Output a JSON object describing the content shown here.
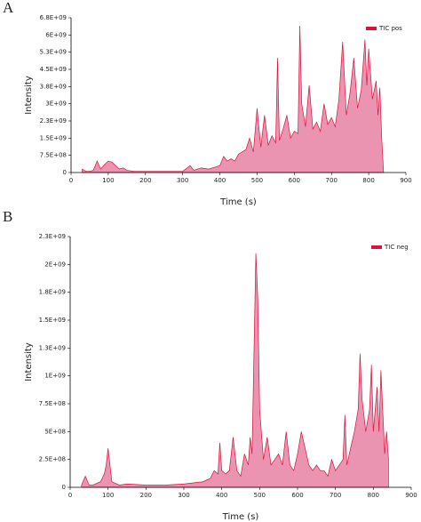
{
  "chart_data": [
    {
      "type": "area",
      "panel": "A",
      "xlabel": "Time (s)",
      "ylabel": "Intensity",
      "legend": "upper right",
      "xlim": [
        0,
        900
      ],
      "xticks": [
        0,
        100,
        200,
        300,
        400,
        500,
        600,
        700,
        800,
        900
      ],
      "ylim": [
        0,
        6750000000.0
      ],
      "yticks": [
        0,
        {
          "value": 750000000.0,
          "label": "7.5E+08"
        },
        {
          "value": 1500000000.0,
          "label": "1.5E+09"
        },
        {
          "value": 2250000000.0,
          "label": "2.3E+09"
        },
        {
          "value": 3000000000.0,
          "label": "3E+09"
        },
        {
          "value": 3750000000.0,
          "label": "3.8E+09"
        },
        {
          "value": 4500000000.0,
          "label": "4.5E+09"
        },
        {
          "value": 5250000000.0,
          "label": "5.3E+09"
        },
        {
          "value": 6000000000.0,
          "label": "6E+09"
        },
        {
          "value": 6750000000.0,
          "label": "6.8E+09"
        }
      ],
      "x": [
        30,
        40,
        50,
        60,
        70,
        80,
        90,
        100,
        110,
        120,
        130,
        140,
        150,
        170,
        200,
        250,
        300,
        320,
        330,
        350,
        370,
        390,
        400,
        410,
        420,
        430,
        440,
        450,
        460,
        470,
        480,
        490,
        500,
        510,
        520,
        530,
        540,
        550,
        555,
        560,
        570,
        580,
        590,
        600,
        610,
        615,
        620,
        630,
        640,
        650,
        660,
        670,
        680,
        690,
        700,
        710,
        720,
        730,
        740,
        750,
        760,
        770,
        780,
        790,
        795,
        800,
        810,
        820,
        825,
        830,
        835,
        840
      ],
      "series": [
        {
          "name": "TIC pos",
          "color": "#d8143c",
          "values": [
            150000000.0,
            50000000.0,
            50000000.0,
            100000000.0,
            500000000.0,
            150000000.0,
            350000000.0,
            500000000.0,
            450000000.0,
            300000000.0,
            150000000.0,
            200000000.0,
            100000000.0,
            50000000.0,
            50000000.0,
            50000000.0,
            50000000.0,
            300000000.0,
            100000000.0,
            200000000.0,
            150000000.0,
            250000000.0,
            300000000.0,
            700000000.0,
            500000000.0,
            600000000.0,
            500000000.0,
            800000000.0,
            900000000.0,
            1000000000.0,
            1500000000.0,
            900000000.0,
            2800000000.0,
            1100000000.0,
            2500000000.0,
            1200000000.0,
            1600000000.0,
            1300000000.0,
            5000000000.0,
            1400000000.0,
            1900000000.0,
            2500000000.0,
            1500000000.0,
            1800000000.0,
            1700000000.0,
            6400000000.0,
            3000000000.0,
            2000000000.0,
            3800000000.0,
            1900000000.0,
            2200000000.0,
            1800000000.0,
            3000000000.0,
            2100000000.0,
            2400000000.0,
            2000000000.0,
            3200000000.0,
            5700000000.0,
            2500000000.0,
            3500000000.0,
            5000000000.0,
            2800000000.0,
            3600000000.0,
            5800000000.0,
            3800000000.0,
            5400000000.0,
            3200000000.0,
            4000000000.0,
            2500000000.0,
            3700000000.0,
            1500000000.0,
            0
          ]
        }
      ]
    },
    {
      "type": "area",
      "panel": "B",
      "xlabel": "Time (s)",
      "ylabel": "Intensity",
      "legend": "upper right",
      "xlim": [
        0,
        900
      ],
      "xticks": [
        0,
        100,
        200,
        300,
        400,
        500,
        600,
        700,
        800,
        900
      ],
      "ylim": [
        0,
        2250000000.0
      ],
      "yticks": [
        0,
        {
          "value": 250000000.0,
          "label": "2.5E+08"
        },
        {
          "value": 500000000.0,
          "label": "5E+08"
        },
        {
          "value": 750000000.0,
          "label": "7.5E+08"
        },
        {
          "value": 1000000000.0,
          "label": "1E+09"
        },
        {
          "value": 1250000000.0,
          "label": "1.3E+09"
        },
        {
          "value": 1500000000.0,
          "label": "1.5E+09"
        },
        {
          "value": 1750000000.0,
          "label": "1.8E+09"
        },
        {
          "value": 2000000000.0,
          "label": "2E+09"
        },
        {
          "value": 2250000000.0,
          "label": "2.3E+09"
        }
      ],
      "x": [
        30,
        40,
        50,
        60,
        80,
        90,
        95,
        100,
        105,
        110,
        130,
        150,
        200,
        250,
        300,
        350,
        370,
        380,
        390,
        395,
        400,
        410,
        420,
        430,
        440,
        450,
        460,
        470,
        475,
        480,
        490,
        495,
        500,
        510,
        520,
        530,
        540,
        550,
        560,
        570,
        580,
        590,
        600,
        610,
        620,
        630,
        640,
        650,
        660,
        670,
        680,
        690,
        700,
        710,
        720,
        725,
        730,
        740,
        750,
        760,
        765,
        770,
        780,
        790,
        795,
        800,
        810,
        815,
        820,
        830,
        835,
        840
      ],
      "series": [
        {
          "name": "TIC neg",
          "color": "#d8143c",
          "values": [
            20000000.0,
            100000000.0,
            20000000.0,
            20000000.0,
            50000000.0,
            120000000.0,
            200000000.0,
            350000000.0,
            200000000.0,
            50000000.0,
            20000000.0,
            30000000.0,
            20000000.0,
            20000000.0,
            30000000.0,
            50000000.0,
            80000000.0,
            150000000.0,
            120000000.0,
            400000000.0,
            150000000.0,
            120000000.0,
            150000000.0,
            450000000.0,
            150000000.0,
            100000000.0,
            300000000.0,
            200000000.0,
            450000000.0,
            300000000.0,
            2100000000.0,
            1700000000.0,
            700000000.0,
            250000000.0,
            450000000.0,
            200000000.0,
            250000000.0,
            300000000.0,
            200000000.0,
            500000000.0,
            200000000.0,
            150000000.0,
            300000000.0,
            500000000.0,
            350000000.0,
            200000000.0,
            150000000.0,
            200000000.0,
            150000000.0,
            150000000.0,
            100000000.0,
            250000000.0,
            150000000.0,
            200000000.0,
            250000000.0,
            650000000.0,
            200000000.0,
            350000000.0,
            500000000.0,
            700000000.0,
            1200000000.0,
            800000000.0,
            500000000.0,
            700000000.0,
            1100000000.0,
            500000000.0,
            900000000.0,
            500000000.0,
            1050000000.0,
            300000000.0,
            500000000.0,
            250000000.0
          ]
        }
      ]
    }
  ]
}
